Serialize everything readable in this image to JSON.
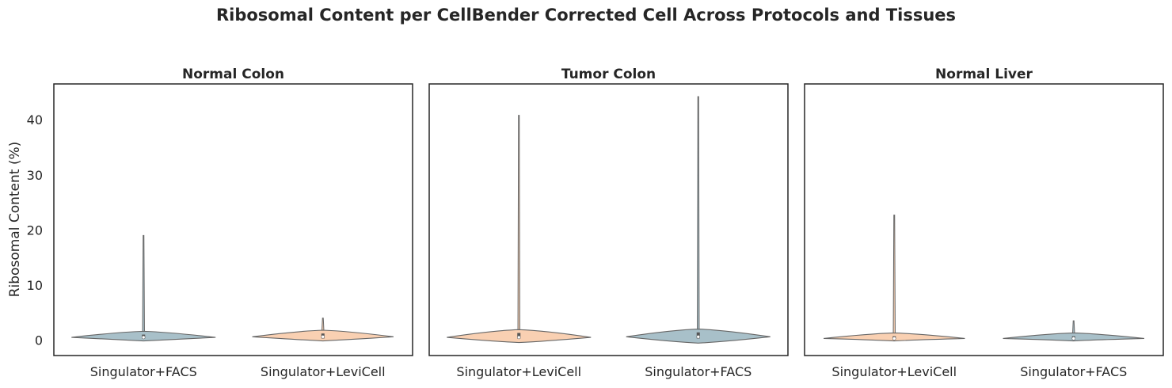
{
  "chart_data": {
    "type": "violin",
    "title": "Ribosomal Content per CellBender Corrected Cell Across Protocols and Tissues",
    "ylabel": "Ribosomal Content (%)",
    "ylim": [
      -2.8,
      46.5
    ],
    "yticks": [
      0,
      10,
      20,
      30,
      40
    ],
    "colors": {
      "Singulator+FACS": "#a8c0c9",
      "Singulator+LeviCell": "#f9d0b2"
    },
    "panels": [
      {
        "title": "Normal Colon",
        "categories": [
          "Singulator+FACS",
          "Singulator+LeviCell"
        ],
        "violins": [
          {
            "protocol": "Singulator+FACS",
            "min": 0.0,
            "max": 19.0,
            "median": 0.5,
            "q1": 0.3,
            "q3": 1.0,
            "width": 1.0
          },
          {
            "protocol": "Singulator+LeviCell",
            "min": 0.0,
            "max": 4.0,
            "median": 0.6,
            "q1": 0.3,
            "q3": 1.2,
            "width": 0.98
          }
        ]
      },
      {
        "title": "Tumor Colon",
        "categories": [
          "Singulator+LeviCell",
          "Singulator+FACS"
        ],
        "violins": [
          {
            "protocol": "Singulator+LeviCell",
            "min": -0.3,
            "max": 40.8,
            "median": 0.5,
            "q1": 0.3,
            "q3": 1.3,
            "width": 1.0
          },
          {
            "protocol": "Singulator+FACS",
            "min": -0.4,
            "max": 44.2,
            "median": 0.6,
            "q1": 0.3,
            "q3": 1.4,
            "width": 1.0
          }
        ]
      },
      {
        "title": "Normal Liver",
        "categories": [
          "Singulator+LeviCell",
          "Singulator+FACS"
        ],
        "violins": [
          {
            "protocol": "Singulator+LeviCell",
            "min": 0.0,
            "max": 22.7,
            "median": 0.3,
            "q1": 0.1,
            "q3": 0.7,
            "width": 0.98
          },
          {
            "protocol": "Singulator+FACS",
            "min": 0.0,
            "max": 3.5,
            "median": 0.3,
            "q1": 0.1,
            "q3": 0.7,
            "width": 0.98
          }
        ]
      }
    ]
  }
}
